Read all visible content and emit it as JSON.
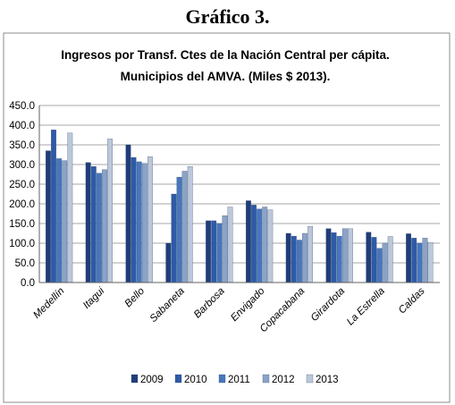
{
  "figure_label": "Gráfico 3.",
  "chart_data": {
    "type": "bar",
    "title_lines": [
      "Ingresos por Transf.  Ctes de la Nación Central per cápita.",
      "Municipios del AMVA.  (Miles $ 2013)."
    ],
    "xlabel": "",
    "ylabel": "",
    "ylim": [
      0,
      450
    ],
    "yticks": [
      "0.0",
      "50.0",
      "100.0",
      "150.0",
      "200.0",
      "250.0",
      "300.0",
      "350.0",
      "400.0",
      "450.0"
    ],
    "grid": true,
    "legend_position": "bottom",
    "categories": [
      "Medellín",
      "Itagui",
      "Bello",
      "Sabaneta",
      "Barbosa",
      "Envigado",
      "Copacabana",
      "Girardota",
      "La Estrella",
      "Caldas"
    ],
    "series": [
      {
        "name": "2009",
        "color": "#1f3d7a",
        "values": [
          335,
          305,
          350,
          100,
          157,
          208,
          125,
          137,
          128,
          124
        ]
      },
      {
        "name": "2010",
        "color": "#2d5aa8",
        "values": [
          388,
          295,
          318,
          225,
          157,
          197,
          118,
          127,
          115,
          113
        ]
      },
      {
        "name": "2011",
        "color": "#4677be",
        "values": [
          315,
          278,
          307,
          268,
          150,
          187,
          108,
          118,
          87,
          100
        ]
      },
      {
        "name": "2012",
        "color": "#8ba3c8",
        "values": [
          310,
          287,
          303,
          283,
          170,
          192,
          125,
          137,
          100,
          113
        ]
      },
      {
        "name": "2013",
        "color": "#bcc8da",
        "values": [
          380,
          365,
          320,
          295,
          192,
          185,
          143,
          137,
          117,
          102
        ]
      }
    ]
  }
}
